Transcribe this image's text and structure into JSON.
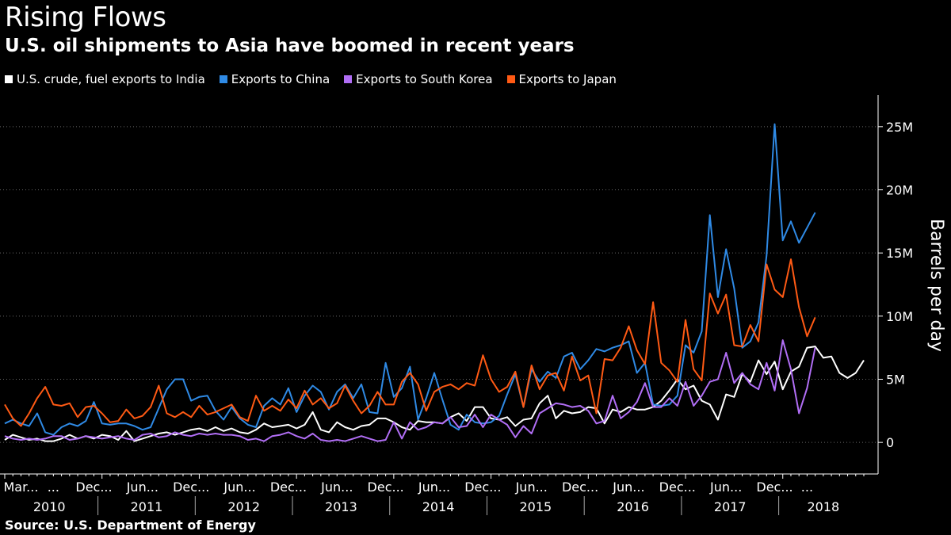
{
  "header": {
    "title": "Rising Flows",
    "subtitle": "U.S. oil shipments to Asia have boomed in recent years"
  },
  "footer": {
    "source": "Source: U.S. Department of Energy"
  },
  "colors": {
    "india": "#ffffff",
    "china": "#2f8ae5",
    "korea": "#b16ef5",
    "japan": "#ff5a14",
    "grid": "#666666"
  },
  "chart_data": {
    "type": "line",
    "title": "Rising Flows",
    "subtitle": "U.S. oil shipments to Asia have boomed in recent years",
    "ylabel": "Barrels per day",
    "ylim": [
      -2500000,
      27500000
    ],
    "yticks": [
      0,
      5000000,
      10000000,
      15000000,
      20000000,
      25000000
    ],
    "ytick_labels": [
      "0",
      "5M",
      "10M",
      "15M",
      "20M",
      "25M"
    ],
    "x_start": "2010-01",
    "x_end": "2018-04",
    "month_labels": [
      {
        "i": 2,
        "label": "Mar..."
      },
      {
        "i": 6,
        "label": "..."
      },
      {
        "i": 11,
        "label": "Dec..."
      },
      {
        "i": 17,
        "label": "Jun..."
      },
      {
        "i": 23,
        "label": "Dec..."
      },
      {
        "i": 29,
        "label": "Jun..."
      },
      {
        "i": 35,
        "label": "Dec..."
      },
      {
        "i": 41,
        "label": "Jun..."
      },
      {
        "i": 47,
        "label": "Dec..."
      },
      {
        "i": 53,
        "label": "Jun..."
      },
      {
        "i": 59,
        "label": "Dec..."
      },
      {
        "i": 65,
        "label": "Jun..."
      },
      {
        "i": 71,
        "label": "Dec..."
      },
      {
        "i": 77,
        "label": "Jun..."
      },
      {
        "i": 83,
        "label": "Dec..."
      },
      {
        "i": 89,
        "label": "Jun..."
      },
      {
        "i": 95,
        "label": "Dec..."
      },
      {
        "i": 99,
        "label": "..."
      }
    ],
    "year_labels": [
      "2010",
      "2011",
      "2012",
      "2013",
      "2014",
      "2015",
      "2016",
      "2017",
      "2018"
    ],
    "series": [
      {
        "name": "U.S. crude, fuel exports to India",
        "color_key": "india",
        "values": [
          200000,
          600000,
          400000,
          200000,
          300000,
          100000,
          100000,
          300000,
          600000,
          300000,
          500000,
          300000,
          600000,
          500000,
          200000,
          900000,
          100000,
          300000,
          500000,
          700000,
          800000,
          600000,
          800000,
          1000000,
          1100000,
          900000,
          1200000,
          900000,
          1100000,
          800000,
          700000,
          1000000,
          1500000,
          1200000,
          1300000,
          1400000,
          1100000,
          1400000,
          2400000,
          1000000,
          800000,
          1600000,
          1200000,
          1000000,
          1300000,
          1400000,
          1900000,
          1900000,
          1600000,
          1200000,
          1000000,
          1700000,
          1600000,
          1600000,
          1500000,
          2000000,
          2300000,
          1700000,
          2800000,
          2800000,
          1900000,
          1800000,
          2000000,
          1300000,
          1800000,
          1900000,
          3100000,
          3700000,
          1900000,
          2500000,
          2300000,
          2400000,
          2800000,
          2700000,
          1500000,
          2600000,
          2400000,
          2800000,
          2600000,
          2600000,
          2800000,
          3300000,
          4100000,
          5000000,
          4200000,
          4500000,
          3300000,
          3000000,
          1800000,
          3800000,
          3600000,
          5400000,
          4800000,
          6500000,
          5400000,
          6400000,
          4200000,
          5600000,
          6000000,
          7500000,
          7600000,
          6700000,
          6800000,
          5500000,
          5100000,
          5500000,
          6500000
        ]
      },
      {
        "name": "Exports to China",
        "color_key": "china",
        "values": [
          1500000,
          1800000,
          1500000,
          1300000,
          2300000,
          800000,
          600000,
          1200000,
          1500000,
          1300000,
          1700000,
          3200000,
          1500000,
          1400000,
          1500000,
          1500000,
          1300000,
          1000000,
          1200000,
          2700000,
          4200000,
          5000000,
          5000000,
          3300000,
          3600000,
          3700000,
          2500000,
          1800000,
          2800000,
          1900000,
          1400000,
          1200000,
          2900000,
          3500000,
          3000000,
          4300000,
          2400000,
          3700000,
          4500000,
          4000000,
          2600000,
          4000000,
          4600000,
          3500000,
          4600000,
          2400000,
          2300000,
          6300000,
          3600000,
          4300000,
          6000000,
          1800000,
          3500000,
          5500000,
          3400000,
          1400000,
          1000000,
          2200000,
          1600000,
          1500000,
          1600000,
          2100000,
          3800000,
          5400000,
          2800000,
          5800000,
          4800000,
          5600000,
          5100000,
          6800000,
          7100000,
          5800000,
          6500000,
          7400000,
          7200000,
          7500000,
          7700000,
          8000000,
          5500000,
          6300000,
          3000000,
          2900000,
          3000000,
          3700000,
          7700000,
          7100000,
          8800000,
          18000000,
          11500000,
          15300000,
          12200000,
          7500000,
          8000000,
          9500000,
          14800000,
          25200000,
          16000000,
          17500000,
          15800000,
          17000000,
          18200000
        ]
      },
      {
        "name": "Exports to South Korea",
        "color_key": "korea",
        "values": [
          500000,
          300000,
          200000,
          300000,
          200000,
          300000,
          500000,
          500000,
          200000,
          300000,
          500000,
          400000,
          300000,
          400000,
          500000,
          300000,
          200000,
          600000,
          700000,
          400000,
          500000,
          800000,
          600000,
          500000,
          700000,
          600000,
          700000,
          600000,
          600000,
          500000,
          200000,
          300000,
          100000,
          500000,
          600000,
          800000,
          500000,
          300000,
          700000,
          200000,
          100000,
          200000,
          100000,
          300000,
          500000,
          300000,
          100000,
          200000,
          1600000,
          300000,
          1600000,
          1000000,
          1200000,
          1600000,
          1500000,
          2000000,
          1200000,
          1300000,
          2200000,
          1200000,
          2200000,
          1800000,
          1400000,
          400000,
          1300000,
          700000,
          2300000,
          2700000,
          3100000,
          3000000,
          2800000,
          2900000,
          2500000,
          1500000,
          1700000,
          3700000,
          1900000,
          2400000,
          3200000,
          4700000,
          2800000,
          2800000,
          3500000,
          2900000,
          4800000,
          2900000,
          3700000,
          4800000,
          5000000,
          7100000,
          4700000,
          5500000,
          4600000,
          4200000,
          6300000,
          4100000,
          8100000,
          5800000,
          2300000,
          4300000,
          7500000
        ]
      },
      {
        "name": "Exports to Japan",
        "color_key": "japan",
        "values": [
          3000000,
          1900000,
          1300000,
          2300000,
          3500000,
          4400000,
          3000000,
          2900000,
          3100000,
          2000000,
          2800000,
          2900000,
          2300000,
          1600000,
          1700000,
          2600000,
          1900000,
          2100000,
          2800000,
          4500000,
          2300000,
          2000000,
          2400000,
          2000000,
          2900000,
          2200000,
          2400000,
          2700000,
          3000000,
          2000000,
          1700000,
          3700000,
          2500000,
          2900000,
          2500000,
          3400000,
          2700000,
          4100000,
          3000000,
          3500000,
          2700000,
          3100000,
          4500000,
          3300000,
          2300000,
          2900000,
          4000000,
          3000000,
          3000000,
          4800000,
          5500000,
          4600000,
          2500000,
          4000000,
          4400000,
          4600000,
          4200000,
          4700000,
          4500000,
          6900000,
          5000000,
          4000000,
          4400000,
          5600000,
          2800000,
          6100000,
          4200000,
          5300000,
          5500000,
          4100000,
          6800000,
          4900000,
          5300000,
          2300000,
          6600000,
          6500000,
          7500000,
          9200000,
          7300000,
          6200000,
          11100000,
          6300000,
          5700000,
          4800000,
          9700000,
          5800000,
          4900000,
          11800000,
          10200000,
          11700000,
          7700000,
          7600000,
          9300000,
          8000000,
          14100000,
          12100000,
          11500000,
          14500000,
          10700000,
          8400000,
          9900000
        ]
      }
    ]
  }
}
